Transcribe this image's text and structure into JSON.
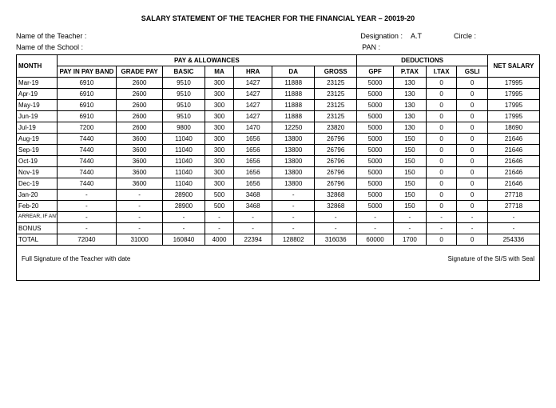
{
  "title": "SALARY STATEMENT OF THE TEACHER FOR THE FINANCIAL YEAR – 20019-20",
  "meta": {
    "teacher_label": "Name of the Teacher :",
    "designation_label": "Designation :",
    "designation_value": "A.T",
    "circle_label": "Circle :",
    "school_label": "Name of the School :",
    "pan_label": "PAN :"
  },
  "headers": {
    "month": "MONTH",
    "pay_allow": "PAY & ALLOWANCES",
    "deductions": "DEDUCTIONS",
    "net_salary": "NET SALARY",
    "cols": [
      "PAY IN PAY BAND",
      "GRADE PAY",
      "BASIC",
      "MA",
      "HRA",
      "DA",
      "GROSS",
      "GPF",
      "P.TAX",
      "I.TAX",
      "GSLI"
    ]
  },
  "rows": [
    {
      "m": "Mar-19",
      "c": [
        "6910",
        "2600",
        "9510",
        "300",
        "1427",
        "11888",
        "23125",
        "5000",
        "130",
        "0",
        "0",
        "17995"
      ]
    },
    {
      "m": "Apr-19",
      "c": [
        "6910",
        "2600",
        "9510",
        "300",
        "1427",
        "11888",
        "23125",
        "5000",
        "130",
        "0",
        "0",
        "17995"
      ]
    },
    {
      "m": "May-19",
      "c": [
        "6910",
        "2600",
        "9510",
        "300",
        "1427",
        "11888",
        "23125",
        "5000",
        "130",
        "0",
        "0",
        "17995"
      ]
    },
    {
      "m": "Jun-19",
      "c": [
        "6910",
        "2600",
        "9510",
        "300",
        "1427",
        "11888",
        "23125",
        "5000",
        "130",
        "0",
        "0",
        "17995"
      ]
    },
    {
      "m": "Jul-19",
      "c": [
        "7200",
        "2600",
        "9800",
        "300",
        "1470",
        "12250",
        "23820",
        "5000",
        "130",
        "0",
        "0",
        "18690"
      ]
    },
    {
      "m": "Aug-19",
      "c": [
        "7440",
        "3600",
        "11040",
        "300",
        "1656",
        "13800",
        "26796",
        "5000",
        "150",
        "0",
        "0",
        "21646"
      ]
    },
    {
      "m": "Sep-19",
      "c": [
        "7440",
        "3600",
        "11040",
        "300",
        "1656",
        "13800",
        "26796",
        "5000",
        "150",
        "0",
        "0",
        "21646"
      ]
    },
    {
      "m": "Oct-19",
      "c": [
        "7440",
        "3600",
        "11040",
        "300",
        "1656",
        "13800",
        "26796",
        "5000",
        "150",
        "0",
        "0",
        "21646"
      ]
    },
    {
      "m": "Nov-19",
      "c": [
        "7440",
        "3600",
        "11040",
        "300",
        "1656",
        "13800",
        "26796",
        "5000",
        "150",
        "0",
        "0",
        "21646"
      ]
    },
    {
      "m": "Dec-19",
      "c": [
        "7440",
        "3600",
        "11040",
        "300",
        "1656",
        "13800",
        "26796",
        "5000",
        "150",
        "0",
        "0",
        "21646"
      ]
    },
    {
      "m": "Jan-20",
      "c": [
        "-",
        "-",
        "28900",
        "500",
        "3468",
        "-",
        "32868",
        "5000",
        "150",
        "0",
        "0",
        "27718"
      ]
    },
    {
      "m": "Feb-20",
      "c": [
        "-",
        "-",
        "28900",
        "500",
        "3468",
        "-",
        "32868",
        "5000",
        "150",
        "0",
        "0",
        "27718"
      ]
    }
  ],
  "arrear_label": "ARREAR, IF ANY",
  "bonus_label": "BONUS",
  "arrear_row": [
    "-",
    "-",
    "-",
    "-",
    "-",
    "-",
    "-",
    "-",
    "-",
    "-",
    "-",
    "-"
  ],
  "bonus_row": [
    "-",
    "-",
    "-",
    "-",
    "-",
    "-",
    "-",
    "-",
    "-",
    "-",
    "-",
    "-"
  ],
  "total_label": "TOTAL",
  "total_row": [
    "72040",
    "31000",
    "160840",
    "4000",
    "22394",
    "128802",
    "316036",
    "60000",
    "1700",
    "0",
    "0",
    "254336"
  ],
  "footer": {
    "left": "Full Signature of the Teacher with date",
    "right": "Signature of the SI/S with Seal"
  }
}
